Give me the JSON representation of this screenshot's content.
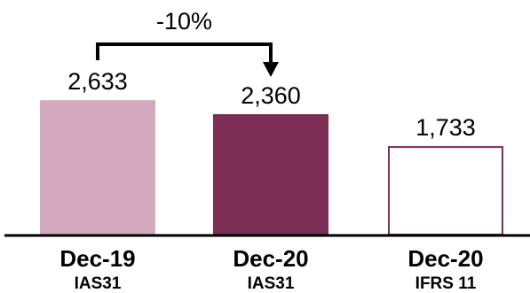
{
  "chart_data": {
    "type": "bar",
    "categories": [
      "Dec-19",
      "Dec-20",
      "Dec-20"
    ],
    "subcategories": [
      "IAS31",
      "IAS31",
      "IFRS 11"
    ],
    "values": [
      2633,
      2360,
      1733
    ],
    "value_labels": [
      "2,633",
      "2,360",
      "1,733"
    ],
    "ylim": [
      0,
      3400
    ],
    "grid": false,
    "legend": "none",
    "annotation": {
      "text": "-10%",
      "from_index": 0,
      "to_index": 1
    },
    "colors": {
      "bar_fills": [
        "#d4a9bd",
        "#7d2e54",
        "#ffffff"
      ],
      "bar_strokes": [
        "#d4a9bd",
        "#7d2e54",
        "#7d2e54"
      ],
      "axis": "#000000",
      "text": "#000000"
    }
  }
}
